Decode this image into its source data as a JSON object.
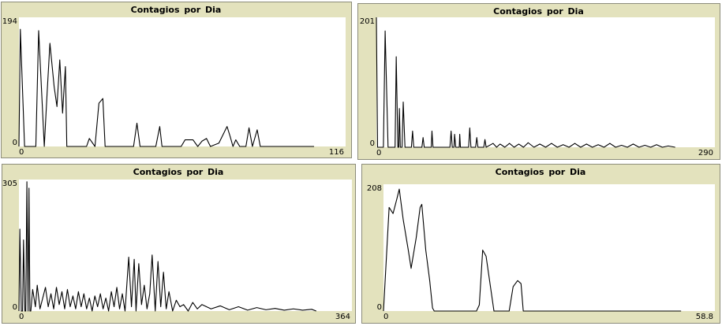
{
  "chart_data": [
    {
      "type": "line",
      "title": "Contagios  por Dia",
      "x": [
        0,
        0.5,
        2,
        6,
        7,
        9,
        10,
        11,
        12.5,
        13.5,
        14.5,
        15.5,
        16.5,
        17,
        24,
        25,
        27,
        28.4,
        29.8,
        30.6,
        40.7,
        41.9,
        43,
        48.6,
        50,
        50.8,
        57.6,
        59,
        61.8,
        63.5,
        65,
        66.6,
        68,
        71,
        73.9,
        75,
        76,
        77,
        78.4,
        80.6,
        81.7,
        82.9,
        84.6,
        85.7,
        104.8
      ],
      "values": [
        0,
        176,
        0,
        0,
        174,
        0,
        80,
        155,
        90,
        60,
        130,
        50,
        120,
        0,
        0,
        12,
        0,
        65,
        72,
        0,
        0,
        35,
        0,
        0,
        30,
        0,
        0,
        10,
        10,
        0,
        8,
        12,
        0,
        5,
        30,
        15,
        0,
        10,
        0,
        0,
        28,
        0,
        25,
        0,
        0
      ],
      "color": "#000000",
      "xlim": [
        0,
        116
      ],
      "ylim": [
        0,
        194
      ],
      "xticks": [
        0,
        116
      ],
      "yticks": [
        0,
        194
      ]
    },
    {
      "type": "line",
      "title": "Contagios  por Dia",
      "x": [
        0,
        1,
        6,
        7.5,
        10,
        16,
        17,
        18.4,
        19.2,
        19.7,
        20.5,
        22,
        23,
        24.5,
        30,
        31,
        32,
        39,
        40,
        41,
        47,
        47.6,
        48.5,
        63,
        64,
        65,
        66.5,
        67,
        68,
        71,
        71.4,
        72,
        79,
        80,
        81,
        85,
        86,
        87,
        92,
        93,
        94,
        100,
        103,
        106,
        110,
        114,
        118,
        122,
        126,
        130,
        135,
        140,
        145,
        150,
        155,
        160,
        165,
        170,
        175,
        180,
        185,
        190,
        195,
        200,
        205,
        210,
        215,
        220,
        225,
        230,
        235,
        240,
        245,
        250,
        256
      ],
      "values": [
        201,
        0,
        0,
        180,
        0,
        0,
        140,
        0,
        0,
        60,
        0,
        0,
        70,
        0,
        0,
        25,
        0,
        0,
        15,
        0,
        0,
        25,
        0,
        0,
        25,
        0,
        0,
        20,
        0,
        0,
        20,
        0,
        0,
        30,
        0,
        0,
        15,
        0,
        0,
        12,
        0,
        6,
        0,
        5,
        0,
        6,
        0,
        5,
        0,
        7,
        0,
        5,
        0,
        6,
        0,
        4,
        0,
        6,
        0,
        5,
        0,
        4,
        0,
        6,
        0,
        3,
        0,
        5,
        0,
        3,
        0,
        4,
        0,
        2,
        0
      ],
      "color": "#000000",
      "xlim": [
        0,
        290
      ],
      "ylim": [
        0,
        201
      ],
      "xticks": [
        0,
        290
      ],
      "yticks": [
        0,
        201
      ]
    },
    {
      "type": "line",
      "title": "Contagios  por Dia",
      "x": [
        0,
        1,
        2.6,
        4,
        5,
        6.5,
        7.5,
        8.7,
        10,
        11,
        12,
        13,
        15,
        18,
        20,
        23,
        26,
        29,
        32,
        35,
        38,
        41,
        44,
        47,
        50,
        53,
        56,
        59,
        62,
        65,
        68,
        71,
        74,
        77,
        80,
        83,
        86,
        89,
        92,
        95,
        98,
        101,
        104,
        107,
        110,
        113,
        116,
        120,
        123,
        126,
        128,
        131,
        134,
        137,
        140,
        143,
        145.6,
        149,
        152,
        155,
        158,
        161,
        164,
        168,
        172,
        176,
        180,
        185,
        190,
        195,
        200,
        210,
        220,
        230,
        240,
        250,
        260,
        270,
        280,
        290,
        300,
        310,
        320,
        325
      ],
      "values": [
        0,
        190,
        0,
        0,
        165,
        0,
        0,
        300,
        0,
        285,
        0,
        0,
        50,
        10,
        60,
        5,
        30,
        55,
        10,
        40,
        5,
        55,
        15,
        45,
        5,
        50,
        10,
        35,
        5,
        45,
        10,
        40,
        5,
        30,
        0,
        35,
        10,
        40,
        5,
        30,
        0,
        45,
        10,
        55,
        5,
        40,
        0,
        125,
        10,
        120,
        0,
        110,
        15,
        60,
        5,
        40,
        130,
        0,
        115,
        10,
        90,
        5,
        45,
        0,
        25,
        10,
        15,
        0,
        20,
        5,
        15,
        5,
        12,
        3,
        10,
        2,
        8,
        3,
        6,
        2,
        5,
        2,
        4,
        0
      ],
      "color": "#000000",
      "xlim": [
        0,
        364
      ],
      "ylim": [
        0,
        305
      ],
      "xticks": [
        0,
        364
      ],
      "yticks": [
        0,
        305
      ]
    },
    {
      "type": "line",
      "title": "Contagios  por Dia",
      "x": [
        0,
        1,
        1.7,
        2.4,
        2.8,
        3.5,
        4.4,
        4.9,
        5.8,
        6.5,
        6.8,
        7.5,
        8.2,
        8.7,
        9,
        16.5,
        17,
        17.6,
        18.2,
        18.9,
        19.6,
        22.3,
        23,
        23.8,
        24.4,
        24.8,
        52.8
      ],
      "values": [
        0,
        170,
        160,
        185,
        200,
        150,
        100,
        70,
        120,
        170,
        175,
        100,
        50,
        5,
        0,
        0,
        10,
        100,
        90,
        45,
        0,
        0,
        40,
        50,
        45,
        0,
        0
      ],
      "color": "#000000",
      "xlim": [
        0,
        58.8
      ],
      "ylim": [
        0,
        208
      ],
      "xticks": [
        0,
        58.8
      ],
      "yticks": [
        0,
        208
      ]
    }
  ]
}
